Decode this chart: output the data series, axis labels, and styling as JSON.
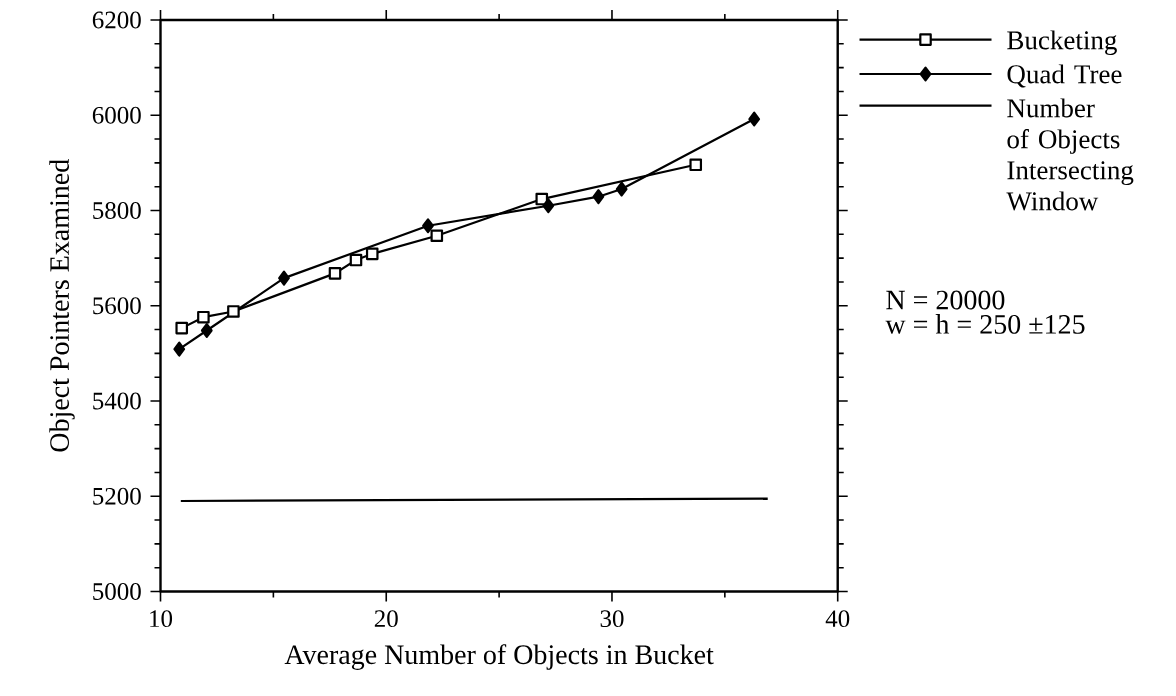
{
  "chart_data": {
    "type": "line",
    "xlabel": "Average Number of Objects in Bucket",
    "ylabel": "Object Pointers Examined",
    "xlim": [
      10,
      40
    ],
    "xticks": [
      10,
      20,
      30,
      40
    ],
    "ylim": [
      5000,
      6200
    ],
    "yticks": [
      5000,
      5200,
      5400,
      5600,
      5800,
      6000,
      6200
    ],
    "legend": "top right",
    "series": [
      {
        "name": "Bucketing",
        "color": "#000000",
        "marker": "square",
        "x": [
          10.94,
          11.9,
          13.23,
          17.73,
          18.66,
          19.38,
          22.24,
          26.89,
          33.71
        ],
        "values": [
          5553,
          5576,
          5588,
          5668,
          5696,
          5709,
          5747,
          5824,
          5896
        ]
      },
      {
        "name": "Quad Tree",
        "color": "#000000",
        "marker": "diamond",
        "x": [
          10.83,
          12.05,
          15.47,
          21.85,
          27.18,
          29.4,
          30.43,
          36.3
        ],
        "values": [
          5509,
          5548,
          5658,
          5768,
          5810,
          5829,
          5845,
          5992
        ]
      },
      {
        "name": "Number of Objects Intersecting Window",
        "color": "#000000",
        "marker": "none",
        "x": [
          10.9,
          36.9
        ],
        "values": [
          5190,
          5195
        ]
      }
    ],
    "annotations": [
      "N = 20000",
      "w = h = 250 ±125"
    ]
  }
}
